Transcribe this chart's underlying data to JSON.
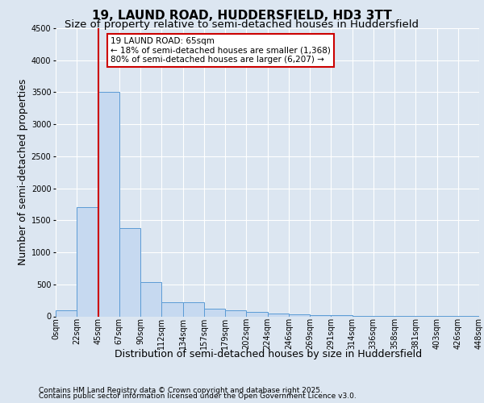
{
  "title_line1": "19, LAUND ROAD, HUDDERSFIELD, HD3 3TT",
  "title_line2": "Size of property relative to semi-detached houses in Huddersfield",
  "xlabel": "Distribution of semi-detached houses by size in Huddersfield",
  "ylabel": "Number of semi-detached properties",
  "bar_values": [
    100,
    1700,
    3500,
    1380,
    540,
    220,
    220,
    120,
    100,
    70,
    50,
    30,
    20,
    15,
    10,
    8,
    5,
    3,
    2,
    1
  ],
  "bar_labels": [
    "0sqm",
    "22sqm",
    "45sqm",
    "67sqm",
    "90sqm",
    "112sqm",
    "134sqm",
    "157sqm",
    "179sqm",
    "202sqm",
    "224sqm",
    "246sqm",
    "269sqm",
    "291sqm",
    "314sqm",
    "336sqm",
    "358sqm",
    "381sqm",
    "403sqm",
    "426sqm",
    "448sqm"
  ],
  "bar_color": "#c6d9f0",
  "bar_edge_color": "#5b9bd5",
  "red_line_x": 2.0,
  "annotation_text": "19 LAUND ROAD: 65sqm\n← 18% of semi-detached houses are smaller (1,368)\n80% of semi-detached houses are larger (6,207) →",
  "annotation_box_color": "#ffffff",
  "annotation_box_edge": "#cc0000",
  "ylim": [
    0,
    4500
  ],
  "yticks": [
    0,
    500,
    1000,
    1500,
    2000,
    2500,
    3000,
    3500,
    4000,
    4500
  ],
  "grid_color": "#ffffff",
  "bg_color": "#dce6f1",
  "footer_line1": "Contains HM Land Registry data © Crown copyright and database right 2025.",
  "footer_line2": "Contains public sector information licensed under the Open Government Licence v3.0.",
  "title_fontsize": 11,
  "subtitle_fontsize": 9.5,
  "tick_fontsize": 7,
  "label_fontsize": 9,
  "annotation_fontsize": 7.5,
  "footer_fontsize": 6.5,
  "red_line_color": "#cc0000"
}
